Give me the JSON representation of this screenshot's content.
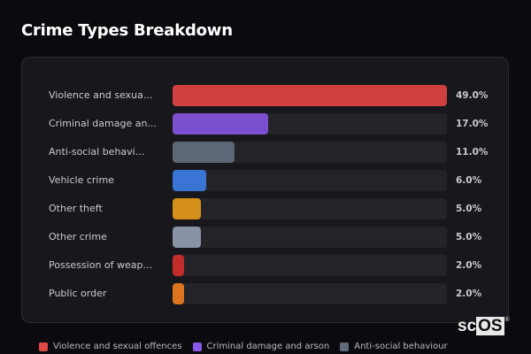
{
  "title": "Crime Types Breakdown",
  "chart_data": {
    "type": "bar",
    "orientation": "horizontal",
    "title": "Crime Types Breakdown",
    "categories": [
      "Violence and sexual offences",
      "Criminal damage and arson",
      "Anti-social behaviour",
      "Vehicle crime",
      "Other theft",
      "Other crime",
      "Possession of weapons",
      "Public order"
    ],
    "display_labels": [
      "Violence and sexua...",
      "Criminal damage an...",
      "Anti-social behavi...",
      "Vehicle crime",
      "Other theft",
      "Other crime",
      "Possession of weap...",
      "Public order"
    ],
    "values": [
      49.0,
      17.0,
      11.0,
      6.0,
      5.0,
      5.0,
      2.0,
      2.0
    ],
    "value_labels": [
      "49.0%",
      "17.0%",
      "11.0%",
      "6.0%",
      "5.0%",
      "5.0%",
      "2.0%",
      "2.0%"
    ],
    "colors": [
      "#d04040",
      "#7b4fd0",
      "#5c6878",
      "#3a74d4",
      "#d4901a",
      "#8893a6",
      "#c42c2c",
      "#dd7420"
    ],
    "xlim": [
      0,
      49
    ],
    "grid": false,
    "legend_position": "bottom"
  },
  "rows": [
    {
      "label": "Violence and sexua...",
      "pct": "49.0%",
      "value": 49.0,
      "color": "#d04040"
    },
    {
      "label": "Criminal damage an...",
      "pct": "17.0%",
      "value": 17.0,
      "color": "#7b4fd0"
    },
    {
      "label": "Anti-social behavi...",
      "pct": "11.0%",
      "value": 11.0,
      "color": "#5c6878"
    },
    {
      "label": "Vehicle crime",
      "pct": "6.0%",
      "value": 6.0,
      "color": "#3a74d4"
    },
    {
      "label": "Other theft",
      "pct": "5.0%",
      "value": 5.0,
      "color": "#d4901a"
    },
    {
      "label": "Other crime",
      "pct": "5.0%",
      "value": 5.0,
      "color": "#8893a6"
    },
    {
      "label": "Possession of weap...",
      "pct": "2.0%",
      "value": 2.0,
      "color": "#c42c2c"
    },
    {
      "label": "Public order",
      "pct": "2.0%",
      "value": 2.0,
      "color": "#dd7420"
    }
  ],
  "legend": [
    {
      "label": "Violence and sexual offences",
      "color": "#e04848"
    },
    {
      "label": "Criminal damage and arson",
      "color": "#8a58e8"
    },
    {
      "label": "Anti-social behaviour",
      "color": "#5f6b7c"
    }
  ],
  "logo": {
    "text_a": "sc",
    "text_b": "OS",
    "mark": "®"
  }
}
